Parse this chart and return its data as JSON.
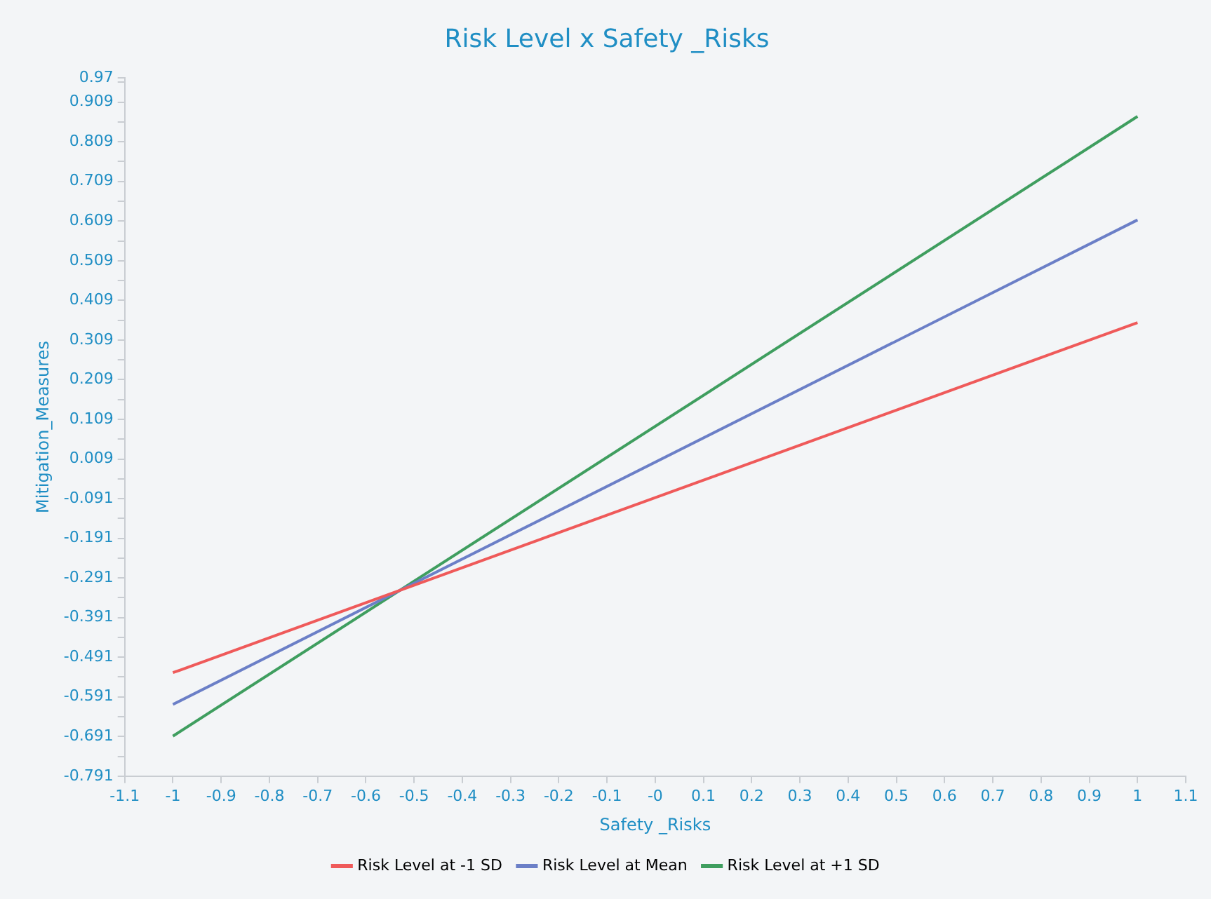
{
  "chart_data": {
    "type": "line",
    "title": "Risk Level x Safety _Risks",
    "xlabel": "Safety _Risks",
    "ylabel": "Mitigation_Measures",
    "x": [
      -1,
      1
    ],
    "series": [
      {
        "name": "Risk Level at -1 SD",
        "color": "#ef5a5a",
        "values": [
          -0.53,
          0.353
        ]
      },
      {
        "name": "Risk Level at Mean",
        "color": "#6b7fc7",
        "values": [
          -0.61,
          0.612
        ]
      },
      {
        "name": "Risk Level at +1 SD",
        "color": "#3f9e5f",
        "values": [
          -0.69,
          0.873
        ]
      }
    ],
    "xlim": [
      -1.1,
      1.1
    ],
    "xticks": [
      -1.1,
      -1,
      -0.9,
      -0.8,
      -0.7,
      -0.6,
      -0.5,
      -0.4,
      -0.3,
      -0.2,
      -0.1,
      {
        "value": 0,
        "label": "-0"
      },
      0.1,
      0.2,
      0.3,
      0.4,
      0.5,
      0.6,
      0.7,
      0.8,
      0.9,
      1,
      1.1
    ],
    "ylim": [
      -0.791,
      0.97
    ],
    "yticks": [
      -0.791,
      {
        "value": -0.741,
        "label": null
      },
      -0.691,
      {
        "value": -0.641,
        "label": null
      },
      -0.591,
      {
        "value": -0.541,
        "label": null
      },
      -0.491,
      {
        "value": -0.441,
        "label": null
      },
      -0.391,
      {
        "value": -0.341,
        "label": null
      },
      -0.291,
      {
        "value": -0.241,
        "label": null
      },
      -0.191,
      {
        "value": -0.141,
        "label": null
      },
      -0.091,
      {
        "value": -0.041,
        "label": null
      },
      0.009,
      {
        "value": 0.059,
        "label": null
      },
      0.109,
      {
        "value": 0.159,
        "label": null
      },
      0.209,
      {
        "value": 0.259,
        "label": null
      },
      0.309,
      {
        "value": 0.359,
        "label": null
      },
      0.409,
      {
        "value": 0.459,
        "label": null
      },
      0.509,
      {
        "value": 0.559,
        "label": null
      },
      0.609,
      {
        "value": 0.659,
        "label": null
      },
      0.709,
      {
        "value": 0.759,
        "label": null
      },
      0.809,
      {
        "value": 0.859,
        "label": null
      },
      0.909,
      {
        "value": 0.959,
        "label": null
      },
      0.97
    ],
    "grid": false,
    "legend": "bottom",
    "marker": "none",
    "line_style": "solid"
  }
}
